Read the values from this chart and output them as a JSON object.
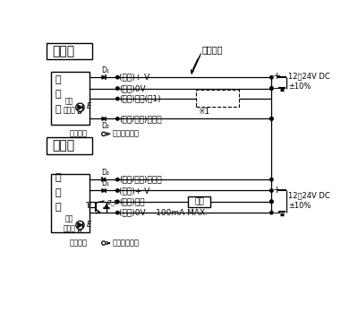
{
  "title_top": "投光器",
  "title_bottom": "受光器",
  "wire_color_label": "导线颜色",
  "internal_label": "内部电路",
  "external_label": "外部连接示例",
  "voltage_label": "12～24V DC\n±10%",
  "top_wires": [
    "(褐色)+ V",
    "(蓝色)0V",
    "(粉色)输入(注1)",
    "(橙色/紫色)同步线"
  ],
  "bottom_wires": [
    "(橙色/紫色)同步线",
    "(褐色)+ V",
    "(黑色)输出",
    "(蓝色)0V    100mA MAX."
  ],
  "note1": "※1",
  "load_label": "负载",
  "bg_color": "#ffffff",
  "fig_width": 3.81,
  "fig_height": 3.59,
  "dpi": 100
}
